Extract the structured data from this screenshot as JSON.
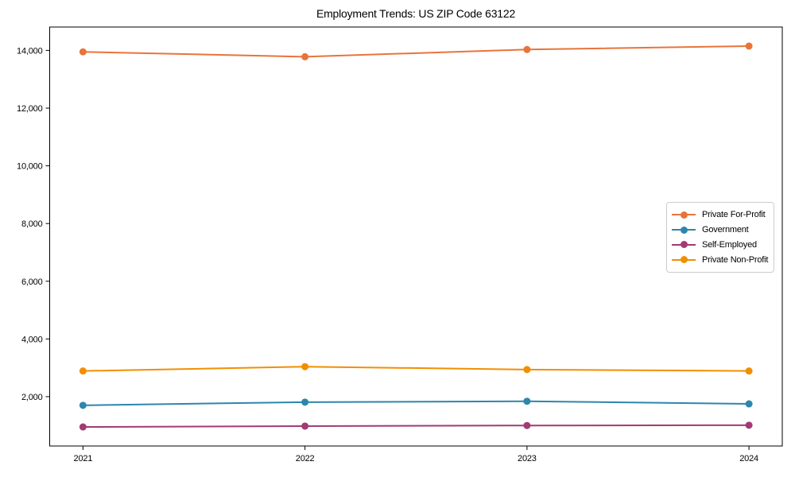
{
  "page": {
    "background": "#ffffff"
  },
  "chart_data": {
    "type": "line",
    "title": "Employment Trends: US ZIP Code 63122",
    "x": [
      2021,
      2022,
      2023,
      2024
    ],
    "x_tick_labels": [
      "2021",
      "2022",
      "2023",
      "2024"
    ],
    "series": [
      {
        "name": "Private For-Profit",
        "color": "#E8743B",
        "values": [
          13950,
          13780,
          14030,
          14150
        ]
      },
      {
        "name": "Government",
        "color": "#2E86AB",
        "values": [
          1700,
          1810,
          1840,
          1750
        ]
      },
      {
        "name": "Self-Employed",
        "color": "#A23B72",
        "values": [
          950,
          980,
          1000,
          1010
        ]
      },
      {
        "name": "Private Non-Profit",
        "color": "#F18F01",
        "values": [
          2890,
          3040,
          2940,
          2890
        ]
      }
    ],
    "yticks": [
      2000,
      4000,
      6000,
      8000,
      10000,
      12000,
      14000
    ],
    "ytick_labels": [
      "2,000",
      "4,000",
      "6,000",
      "8,000",
      "10,000",
      "12,000",
      "14,000"
    ],
    "xlim": [
      2020.85,
      2024.15
    ],
    "ylim": [
      290,
      14810
    ],
    "grid": false,
    "legend_position": "center-right",
    "axis_color": "#000000",
    "line_width": 2,
    "marker": "circle",
    "marker_radius": 4.5
  }
}
